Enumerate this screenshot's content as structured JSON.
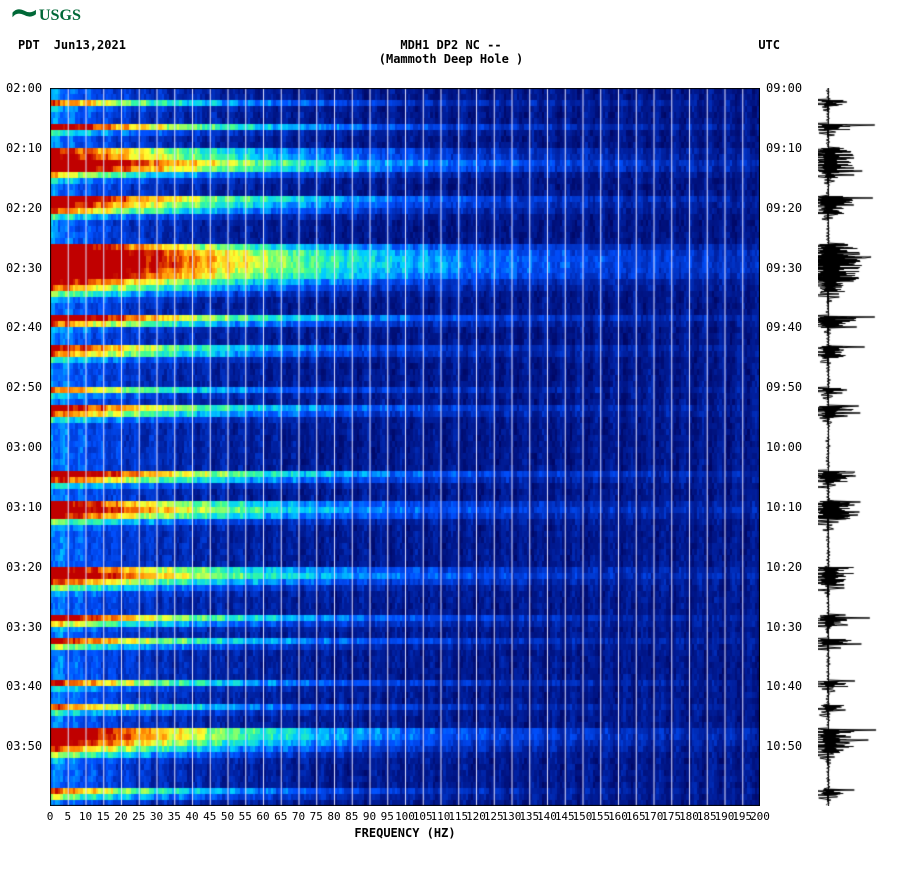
{
  "logo_text": "USGS",
  "logo_color": "#006837",
  "header": {
    "tz_left": "PDT",
    "date": "Jun13,2021",
    "title_line1": "MDH1 DP2 NC --",
    "title_line2": "(Mammoth Deep Hole )",
    "tz_right": "UTC"
  },
  "spectrogram": {
    "type": "heatmap",
    "x_axis": {
      "label": "FREQUENCY (HZ)",
      "min": 0,
      "max": 200,
      "tick_step": 5,
      "tick_labels": [
        "0",
        "5",
        "10",
        "15",
        "20",
        "25",
        "30",
        "35",
        "40",
        "45",
        "50",
        "55",
        "60",
        "65",
        "70",
        "75",
        "80",
        "85",
        "90",
        "95",
        "100",
        "105",
        "110",
        "115",
        "120",
        "125",
        "130",
        "135",
        "140",
        "145",
        "150",
        "155",
        "160",
        "165",
        "170",
        "175",
        "180",
        "185",
        "190",
        "195",
        "200"
      ]
    },
    "y_axis_left": {
      "label": "PDT time",
      "ticks": [
        "02:00",
        "02:10",
        "02:20",
        "02:30",
        "02:40",
        "02:50",
        "03:00",
        "03:10",
        "03:20",
        "03:30",
        "03:40",
        "03:50"
      ]
    },
    "y_axis_right": {
      "label": "UTC time",
      "ticks": [
        "09:00",
        "09:10",
        "09:20",
        "09:30",
        "09:40",
        "09:50",
        "10:00",
        "10:10",
        "10:20",
        "10:30",
        "10:40",
        "10:50"
      ]
    },
    "n_rows": 120,
    "row_intensity": [
      0.25,
      0.25,
      0.7,
      0.3,
      0.25,
      0.25,
      0.85,
      0.4,
      0.25,
      0.25,
      0.8,
      0.85,
      0.95,
      0.9,
      0.6,
      0.35,
      0.25,
      0.25,
      0.9,
      0.85,
      0.7,
      0.4,
      0.25,
      0.25,
      0.25,
      0.25,
      0.9,
      0.98,
      1.0,
      1.0,
      0.98,
      0.95,
      0.85,
      0.7,
      0.5,
      0.3,
      0.25,
      0.25,
      0.9,
      0.7,
      0.3,
      0.25,
      0.25,
      0.8,
      0.7,
      0.4,
      0.25,
      0.25,
      0.25,
      0.25,
      0.7,
      0.35,
      0.25,
      0.85,
      0.7,
      0.4,
      0.25,
      0.25,
      0.25,
      0.25,
      0.25,
      0.25,
      0.25,
      0.25,
      0.9,
      0.75,
      0.4,
      0.25,
      0.25,
      0.85,
      0.9,
      0.8,
      0.5,
      0.3,
      0.25,
      0.25,
      0.25,
      0.25,
      0.25,
      0.25,
      0.85,
      0.9,
      0.75,
      0.5,
      0.3,
      0.25,
      0.25,
      0.25,
      0.85,
      0.6,
      0.3,
      0.25,
      0.8,
      0.5,
      0.25,
      0.25,
      0.25,
      0.25,
      0.25,
      0.75,
      0.35,
      0.25,
      0.25,
      0.7,
      0.4,
      0.25,
      0.25,
      0.9,
      0.9,
      0.85,
      0.7,
      0.5,
      0.3,
      0.25,
      0.25,
      0.25,
      0.25,
      0.7,
      0.5,
      0.25
    ],
    "colormap": [
      {
        "t": 0.0,
        "c": "#000055"
      },
      {
        "t": 0.18,
        "c": "#0020a0"
      },
      {
        "t": 0.35,
        "c": "#0050ff"
      },
      {
        "t": 0.5,
        "c": "#00d0ff"
      },
      {
        "t": 0.62,
        "c": "#40ff90"
      },
      {
        "t": 0.75,
        "c": "#ffff30"
      },
      {
        "t": 0.88,
        "c": "#ff8000"
      },
      {
        "t": 1.0,
        "c": "#c00000"
      }
    ],
    "background_color": "#ffffff",
    "gridline_color": "#e0e0ff",
    "decay_freq_scale": 35,
    "noise_amp": 0.18,
    "title_fontsize": 12,
    "tick_fontsize": 11
  },
  "seismogram": {
    "trace_color": "#000000",
    "baseline_x": 0.5,
    "amp_scale": 1.0
  }
}
